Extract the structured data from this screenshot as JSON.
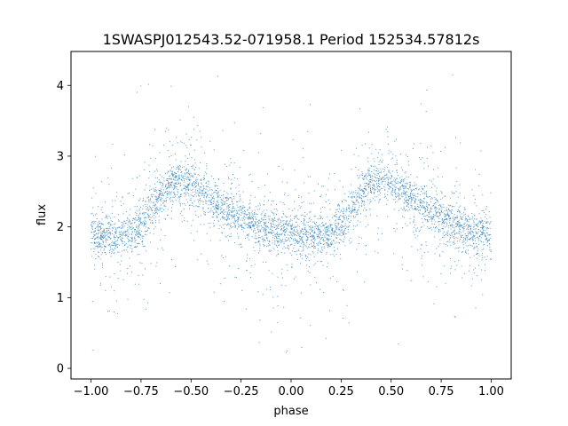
{
  "chart_data": {
    "type": "scatter",
    "title": "1SWASPJ012543.52-071958.1 Period 152534.57812s",
    "xlabel": "phase",
    "ylabel": "flux",
    "xlim": [
      -1.1,
      1.1
    ],
    "ylim": [
      -0.15,
      4.48
    ],
    "xticks": [
      -1.0,
      -0.75,
      -0.5,
      -0.25,
      0.0,
      0.25,
      0.5,
      0.75,
      1.0
    ],
    "xtick_labels": [
      "−1.00",
      "−0.75",
      "−0.50",
      "−0.25",
      "0.00",
      "0.25",
      "0.50",
      "0.75",
      "1.00"
    ],
    "yticks": [
      0,
      1,
      2,
      3,
      4
    ],
    "ytick_labels": [
      "0",
      "1",
      "2",
      "3",
      "4"
    ],
    "grid": false,
    "marker_color": "#1f77b4",
    "series": [
      {
        "phase_range": [
          -1.0,
          1.0
        ],
        "profile": {
          "x": [
            -1.0,
            -0.9,
            -0.8,
            -0.7,
            -0.6,
            -0.5,
            -0.4,
            -0.3,
            -0.2,
            -0.1,
            0.0,
            0.1,
            0.2,
            0.3,
            0.4,
            0.5,
            0.6,
            0.7,
            0.8,
            0.9,
            1.0
          ],
          "y": [
            1.9,
            1.87,
            1.88,
            2.25,
            2.65,
            2.6,
            2.38,
            2.2,
            2.05,
            1.95,
            1.9,
            1.87,
            1.88,
            2.25,
            2.65,
            2.6,
            2.38,
            2.2,
            2.05,
            1.95,
            1.9
          ]
        },
        "flux_range_observed": [
          0.0,
          4.3
        ]
      }
    ]
  }
}
